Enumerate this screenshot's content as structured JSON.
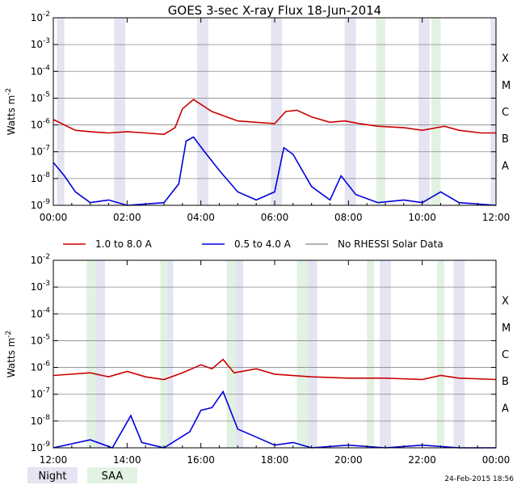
{
  "chart_data": {
    "type": "line",
    "title": "GOES 3-sec X-ray Flux    18-Jun-2014",
    "ylabel": "Watts m",
    "ylabel_exp": "-2",
    "ylim_log10": [
      -9,
      -2
    ],
    "yticks": [
      {
        "base": "10",
        "exp": "-9"
      },
      {
        "base": "10",
        "exp": "-8"
      },
      {
        "base": "10",
        "exp": "-7"
      },
      {
        "base": "10",
        "exp": "-6"
      },
      {
        "base": "10",
        "exp": "-5"
      },
      {
        "base": "10",
        "exp": "-4"
      },
      {
        "base": "10",
        "exp": "-3"
      },
      {
        "base": "10",
        "exp": "-2"
      }
    ],
    "flare_classes": [
      {
        "label": "A",
        "log10": -7.5
      },
      {
        "label": "B",
        "log10": -6.5
      },
      {
        "label": "C",
        "log10": -5.5
      },
      {
        "label": "M",
        "log10": -4.5
      },
      {
        "label": "X",
        "log10": -3.5
      }
    ],
    "panels": [
      {
        "name": "top",
        "xlim_hours": [
          0,
          12
        ],
        "xtick_hours": [
          0,
          2,
          4,
          6,
          8,
          10,
          12
        ],
        "xtick_labels": [
          "00:00",
          "02:00",
          "04:00",
          "06:00",
          "08:00",
          "10:00",
          "12:00"
        ],
        "night_hours": [
          [
            0.1,
            0.3
          ],
          [
            1.65,
            1.95
          ],
          [
            3.9,
            4.2
          ],
          [
            5.9,
            6.2
          ],
          [
            7.9,
            8.2
          ],
          [
            9.9,
            10.2
          ],
          [
            11.85,
            12
          ]
        ],
        "saa_hours": [
          [
            8.75,
            9.0
          ],
          [
            10.25,
            10.5
          ]
        ]
      },
      {
        "name": "bottom",
        "xlim_hours": [
          12,
          24
        ],
        "xtick_hours": [
          12,
          14,
          16,
          18,
          20,
          22,
          24
        ],
        "xtick_labels": [
          "12:00",
          "14:00",
          "16:00",
          "18:00",
          "20:00",
          "22:00",
          "00:00"
        ],
        "night_hours": [
          [
            13.1,
            13.4
          ],
          [
            14.95,
            15.25
          ],
          [
            16.85,
            17.15
          ],
          [
            18.85,
            19.15
          ],
          [
            20.85,
            21.15
          ],
          [
            22.85,
            23.15
          ]
        ],
        "saa_hours": [
          [
            12.9,
            13.15
          ],
          [
            14.9,
            15.1
          ],
          [
            16.7,
            16.95
          ],
          [
            18.6,
            18.9
          ],
          [
            20.5,
            20.7
          ],
          [
            22.4,
            22.6
          ]
        ]
      }
    ],
    "series": [
      {
        "name": "1.0 to 8.0 A",
        "color": "#cc0000",
        "points": [
          [
            0.0,
            -5.8
          ],
          [
            0.6,
            -6.2
          ],
          [
            1.0,
            -6.25
          ],
          [
            1.5,
            -6.3
          ],
          [
            2.0,
            -6.25
          ],
          [
            2.5,
            -6.3
          ],
          [
            3.0,
            -6.35
          ],
          [
            3.3,
            -6.1
          ],
          [
            3.5,
            -5.4
          ],
          [
            3.8,
            -5.05
          ],
          [
            4.3,
            -5.5
          ],
          [
            5.0,
            -5.85
          ],
          [
            5.5,
            -5.9
          ],
          [
            6.0,
            -5.95
          ],
          [
            6.3,
            -5.5
          ],
          [
            6.6,
            -5.45
          ],
          [
            7.0,
            -5.7
          ],
          [
            7.5,
            -5.9
          ],
          [
            7.9,
            -5.85
          ],
          [
            8.3,
            -5.95
          ],
          [
            8.8,
            -6.05
          ],
          [
            9.5,
            -6.1
          ],
          [
            10.0,
            -6.2
          ],
          [
            10.6,
            -6.05
          ],
          [
            11.0,
            -6.2
          ],
          [
            11.6,
            -6.3
          ],
          [
            12.0,
            -6.3
          ],
          [
            13.0,
            -6.2
          ],
          [
            13.5,
            -6.35
          ],
          [
            14.0,
            -6.15
          ],
          [
            14.5,
            -6.35
          ],
          [
            15.0,
            -6.45
          ],
          [
            15.5,
            -6.2
          ],
          [
            16.0,
            -5.9
          ],
          [
            16.3,
            -6.05
          ],
          [
            16.6,
            -5.7
          ],
          [
            16.9,
            -6.2
          ],
          [
            17.5,
            -6.05
          ],
          [
            18.0,
            -6.25
          ],
          [
            19.0,
            -6.35
          ],
          [
            20.0,
            -6.4
          ],
          [
            21.0,
            -6.4
          ],
          [
            22.0,
            -6.45
          ],
          [
            22.5,
            -6.3
          ],
          [
            23.0,
            -6.4
          ],
          [
            24.0,
            -6.45
          ]
        ]
      },
      {
        "name": "0.5 to 4.0 A",
        "color": "#0000dd",
        "points": [
          [
            0.0,
            -7.4
          ],
          [
            0.3,
            -7.9
          ],
          [
            0.6,
            -8.5
          ],
          [
            1.0,
            -8.9
          ],
          [
            1.5,
            -8.8
          ],
          [
            2.0,
            -9.0
          ],
          [
            3.0,
            -8.9
          ],
          [
            3.4,
            -8.2
          ],
          [
            3.6,
            -6.6
          ],
          [
            3.8,
            -6.45
          ],
          [
            4.1,
            -7.0
          ],
          [
            4.5,
            -7.7
          ],
          [
            5.0,
            -8.5
          ],
          [
            5.5,
            -8.8
          ],
          [
            6.0,
            -8.5
          ],
          [
            6.25,
            -6.85
          ],
          [
            6.5,
            -7.1
          ],
          [
            7.0,
            -8.3
          ],
          [
            7.5,
            -8.8
          ],
          [
            7.8,
            -7.9
          ],
          [
            8.2,
            -8.6
          ],
          [
            8.8,
            -8.9
          ],
          [
            9.5,
            -8.8
          ],
          [
            10.0,
            -8.9
          ],
          [
            10.5,
            -8.5
          ],
          [
            11.0,
            -8.9
          ],
          [
            12.0,
            -9.0
          ],
          [
            13.0,
            -8.7
          ],
          [
            13.6,
            -9.0
          ],
          [
            14.1,
            -7.8
          ],
          [
            14.4,
            -8.8
          ],
          [
            15.0,
            -9.0
          ],
          [
            15.7,
            -8.4
          ],
          [
            16.0,
            -7.6
          ],
          [
            16.3,
            -7.5
          ],
          [
            16.6,
            -6.9
          ],
          [
            17.0,
            -8.3
          ],
          [
            17.5,
            -8.6
          ],
          [
            18.0,
            -8.9
          ],
          [
            18.5,
            -8.8
          ],
          [
            19.0,
            -9.0
          ],
          [
            20.0,
            -8.9
          ],
          [
            21.0,
            -9.0
          ],
          [
            22.0,
            -8.9
          ],
          [
            23.0,
            -9.0
          ],
          [
            24.0,
            -9.0
          ]
        ]
      },
      {
        "name": "No RHESSI Solar Data",
        "color": "#999999",
        "points": []
      }
    ],
    "legend": {
      "shading": [
        {
          "label": "Night",
          "color": "#e4e4f2"
        },
        {
          "label": "SAA",
          "color": "#e2f2e2"
        }
      ]
    },
    "footer_timestamp": "24-Feb-2015 18:56"
  }
}
